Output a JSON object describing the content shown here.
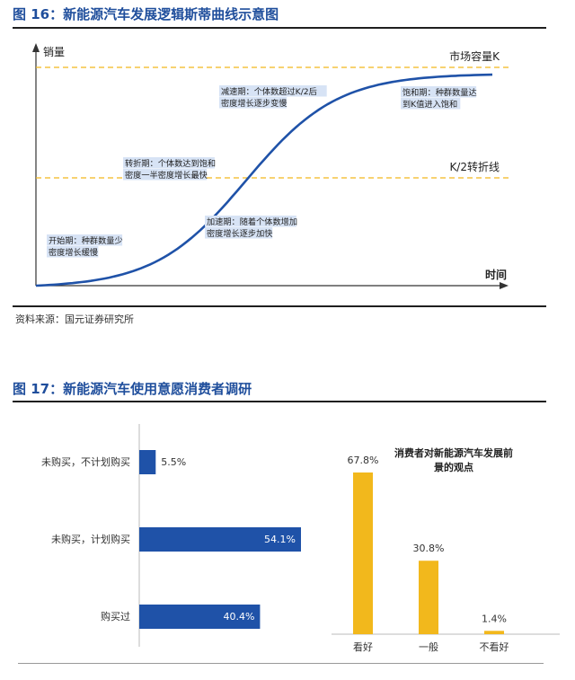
{
  "fig16": {
    "title": "图 16：新能源汽车发展逻辑斯蒂曲线示意图",
    "source": "资料来源：国元证券研究所",
    "chart_data": {
      "type": "line",
      "ylabel": "销量",
      "xlabel": "时间",
      "reference_lines": [
        {
          "label": "市场容量K"
        },
        {
          "label": "K/2转折线"
        }
      ],
      "annotations": [
        {
          "lines": [
            "开始期：种群数量少",
            "密度增长缓慢"
          ]
        },
        {
          "lines": [
            "转折期：个体数达到饱和",
            "密度一半密度增长最快"
          ]
        },
        {
          "lines": [
            "加速期：随着个体数增加",
            "密度增长逐步加快"
          ]
        },
        {
          "lines": [
            "减速期：个体数超过K/2后",
            "密度增长逐步变慢"
          ]
        },
        {
          "lines": [
            "饱和期：种群数量达",
            "到K值进入饱和"
          ]
        }
      ]
    }
  },
  "fig17": {
    "title": "图 17：新能源汽车使用意愿消费者调研",
    "charts": [
      {
        "type": "bar",
        "orientation": "horizontal",
        "categories": [
          "未购买，不计划购买",
          "未购买，计划购买",
          "购买过"
        ],
        "values": [
          5.5,
          54.1,
          40.4
        ],
        "value_labels": [
          "5.5%",
          "54.1%",
          "40.4%"
        ],
        "color": "#1f52a8"
      },
      {
        "type": "bar",
        "orientation": "vertical",
        "title_lines": [
          "消费者对新能源汽车发展前",
          "景的观点"
        ],
        "categories": [
          "看好",
          "一般",
          "不看好"
        ],
        "values": [
          67.8,
          30.8,
          1.4
        ],
        "value_labels": [
          "67.8%",
          "30.8%",
          "1.4%"
        ],
        "color": "#f2b81c"
      }
    ]
  },
  "colors": {
    "title": "#1f4e9c",
    "curve": "#1f52a8",
    "dashed": "#f2b81c",
    "annotation_bg": "#d7e3f5"
  }
}
